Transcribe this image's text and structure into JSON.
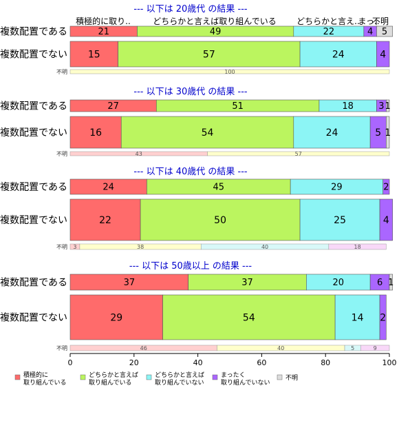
{
  "chart_data": {
    "type": "bar",
    "orientation": "horizontal",
    "stacked": true,
    "xlim": [
      0,
      100
    ],
    "x_ticks": [
      "0",
      "20",
      "40",
      "60",
      "80",
      "100"
    ],
    "column_headers": [
      "積極的に取り..",
      "どちらかと言えば取り組んでいる",
      "どちらかと言え..",
      "まっ..",
      "不明"
    ],
    "legend": {
      "placement": "bottom",
      "items": [
        {
          "label": "積極的に\n取り組んでいる",
          "color": "#FF6B6B"
        },
        {
          "label": "どちらかと言えば\n取り組んでいる",
          "color": "#BBF55F"
        },
        {
          "label": "どちらかと言えば\n取り組んでいない",
          "color": "#8CF5F5"
        },
        {
          "label": "まったく\n取り組んでいない",
          "color": "#AA66FF"
        },
        {
          "label": "不明",
          "color": "#DDDDDD"
        }
      ]
    },
    "colors": [
      "#FF6B6B",
      "#BBF55F",
      "#8CF5F5",
      "#AA66FF",
      "#DDDDDD"
    ],
    "unknown_colors": [
      "#FFD0D0",
      "#FFFFCC",
      "#D8F8F8",
      "#F8D8F8"
    ],
    "panels": [
      {
        "title": "--- 以下は 20歳代 の結果 ---",
        "bars": [
          {
            "label": "複数配置である",
            "values": [
              21,
              49,
              22,
              4,
              5
            ]
          },
          {
            "label": "複数配置でない",
            "values": [
              15,
              57,
              24,
              4,
              0
            ]
          }
        ],
        "unknown": {
          "label": "不明",
          "values": [
            100
          ]
        }
      },
      {
        "title": "--- 以下は 30歳代 の結果 ---",
        "bars": [
          {
            "label": "複数配置である",
            "values": [
              27,
              51,
              18,
              3,
              1
            ]
          },
          {
            "label": "複数配置でない",
            "values": [
              16,
              54,
              24,
              5,
              1
            ]
          }
        ],
        "unknown": {
          "label": "不明",
          "values": [
            43,
            57
          ]
        }
      },
      {
        "title": "--- 以下は 40歳代 の結果 ---",
        "bars": [
          {
            "label": "複数配置である",
            "values": [
              24,
              45,
              29,
              2,
              0
            ]
          },
          {
            "label": "複数配置でない",
            "values": [
              22,
              50,
              25,
              4,
              0
            ]
          }
        ],
        "unknown": {
          "label": "不明",
          "values": [
            3,
            38,
            40,
            18
          ]
        }
      },
      {
        "title": "--- 以下は 50歳以上 の結果 ---",
        "bars": [
          {
            "label": "複数配置である",
            "values": [
              37,
              37,
              20,
              6,
              1
            ]
          },
          {
            "label": "複数配置でない",
            "values": [
              29,
              54,
              14,
              2,
              0
            ]
          }
        ],
        "unknown": {
          "label": "不明",
          "values": [
            46,
            40,
            5,
            9
          ]
        }
      }
    ]
  }
}
